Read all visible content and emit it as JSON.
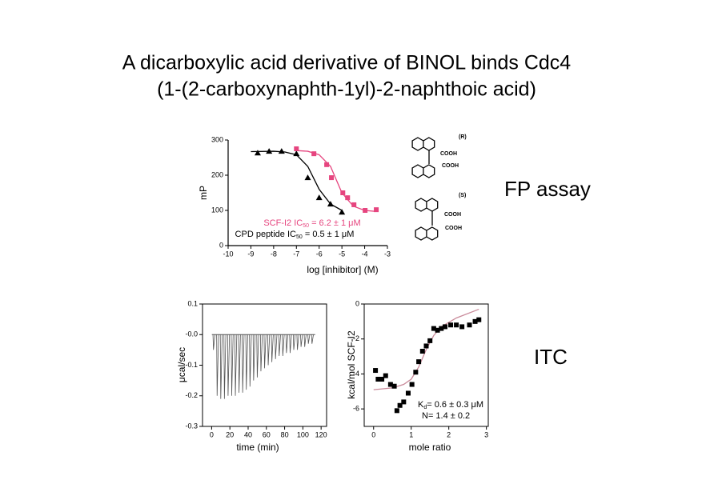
{
  "slide": {
    "title": [
      "A dicarboxylic acid derivative of BINOL binds Cdc4",
      "(1-(2-carboxynaphth-1yl)-2-naphthoic acid)"
    ],
    "labels": [
      "FP assay",
      "ITC"
    ],
    "structures": [
      "(R)",
      "COOH",
      "COOH",
      "(S)",
      "COOH",
      "COOH"
    ]
  },
  "chart_data": [
    {
      "type": "scatter",
      "x_label": "log [inhibitor] (M)",
      "y_label": "mP",
      "xlim": [
        -10,
        -3
      ],
      "xticks": [
        -10,
        -9,
        -8,
        -7,
        -6,
        -5,
        -4,
        -3
      ],
      "ylim": [
        0,
        300
      ],
      "yticks": [
        0,
        100,
        200,
        300
      ],
      "series": [
        {
          "color": "#000000",
          "marker": "triangle",
          "x": [
            -8.7,
            -8.2,
            -7.65,
            -7,
            -6.5,
            -6,
            -5.5,
            -5
          ],
          "values": [
            263,
            268,
            268,
            261,
            193,
            136,
            118,
            95
          ]
        },
        {
          "color": "#e6457f",
          "marker": "square",
          "x": [
            -7,
            -6.23,
            -5.67,
            -5.46,
            -4.96,
            -4.75,
            -4.47,
            -3.98,
            -3.49
          ],
          "values": [
            275,
            261,
            230,
            193,
            150,
            136,
            116,
            100,
            102
          ]
        }
      ],
      "fits": [
        {
          "color": "#000000",
          "x": [
            -9,
            -8,
            -7.5,
            -7,
            -6.5,
            -6,
            -5.5,
            -5
          ],
          "values": [
            267,
            268,
            266,
            258,
            225,
            160,
            118,
            100
          ]
        },
        {
          "color": "#e6457f",
          "x": [
            -7,
            -6.5,
            -6,
            -5.5,
            -5,
            -4.5,
            -4,
            -3.5
          ],
          "values": [
            270,
            268,
            258,
            225,
            150,
            112,
            100,
            97
          ]
        }
      ],
      "annotations": [
        {
          "color": "#e6457f",
          "text": "SCF-I2 IC",
          "sub": "50",
          "rest": " = 6.2 ± 1 μM"
        },
        {
          "color": "#000000",
          "text": "CPD peptide IC",
          "sub": "50",
          "rest": " = 0.5 ± 1 μM"
        }
      ]
    },
    {
      "type": "spikes",
      "x_label": "time (min)",
      "y_label": "μcal/sec",
      "color": "#555555",
      "xlim": [
        -10,
        126
      ],
      "xticks": [
        0,
        20,
        40,
        60,
        80,
        100,
        120
      ],
      "ylim": [
        -0.3,
        0.1
      ],
      "yticks": [
        {
          "value": -0.3,
          "label": "-0.3"
        },
        -0.2,
        -0.1,
        {
          "value": 0,
          "label": "-0.0"
        },
        0.1
      ],
      "x": [
        2,
        6,
        10,
        14,
        18,
        22,
        26,
        30,
        34,
        38,
        42,
        46,
        50,
        54,
        58,
        62,
        66,
        70,
        74,
        78,
        82,
        86,
        90,
        94,
        98,
        102,
        106,
        110
      ],
      "values": [
        -0.05,
        -0.2,
        -0.21,
        -0.21,
        -0.2,
        -0.2,
        -0.2,
        -0.19,
        -0.19,
        -0.18,
        -0.17,
        -0.15,
        -0.14,
        -0.12,
        -0.11,
        -0.1,
        -0.09,
        -0.08,
        -0.07,
        -0.07,
        -0.06,
        -0.06,
        -0.05,
        -0.05,
        -0.04,
        -0.04,
        -0.03,
        -0.03
      ]
    },
    {
      "type": "scatter",
      "x_label": "mole ratio",
      "y_label": "kcal/mol  SCF-I2",
      "xlim": [
        -0.25,
        3.05
      ],
      "xticks": [
        0,
        1,
        2,
        3
      ],
      "ylim": [
        -7,
        0
      ],
      "yticks": [
        -6,
        -4,
        -2,
        0
      ],
      "series": [
        {
          "color": "#000000",
          "marker": "square",
          "x": [
            0.05,
            0.12,
            0.22,
            0.32,
            0.45,
            0.55,
            0.62,
            0.7,
            0.8,
            0.92,
            1.02,
            1.12,
            1.2,
            1.3,
            1.4,
            1.5,
            1.6,
            1.7,
            1.8,
            1.9,
            2.05,
            2.2,
            2.35,
            2.55,
            2.7,
            2.8
          ],
          "values": [
            -3.8,
            -4.3,
            -4.3,
            -4.1,
            -4.6,
            -4.7,
            -6.1,
            -5.8,
            -5.6,
            -5.1,
            -4.6,
            -3.9,
            -3.3,
            -2.7,
            -2.4,
            -2.1,
            -1.4,
            -1.5,
            -1.4,
            -1.3,
            -1.2,
            -1.2,
            -1.3,
            -1.2,
            -1.0,
            -0.9
          ]
        }
      ],
      "fits": [
        {
          "color": "#c98a9a",
          "x": [
            0,
            0.5,
            0.8,
            1,
            1.2,
            1.4,
            1.6,
            1.8,
            2.2,
            2.8
          ],
          "values": [
            -4.9,
            -4.8,
            -4.6,
            -4.3,
            -3.6,
            -2.6,
            -1.8,
            -1.3,
            -0.8,
            -0.3
          ]
        }
      ],
      "annotations": [
        {
          "color": "#000000",
          "text": "K",
          "sub": "d",
          "rest": "= 0.6 ± 0.3 μM"
        },
        {
          "color": "#000000",
          "text": "N= 1.4 ± 0.2"
        }
      ]
    }
  ]
}
